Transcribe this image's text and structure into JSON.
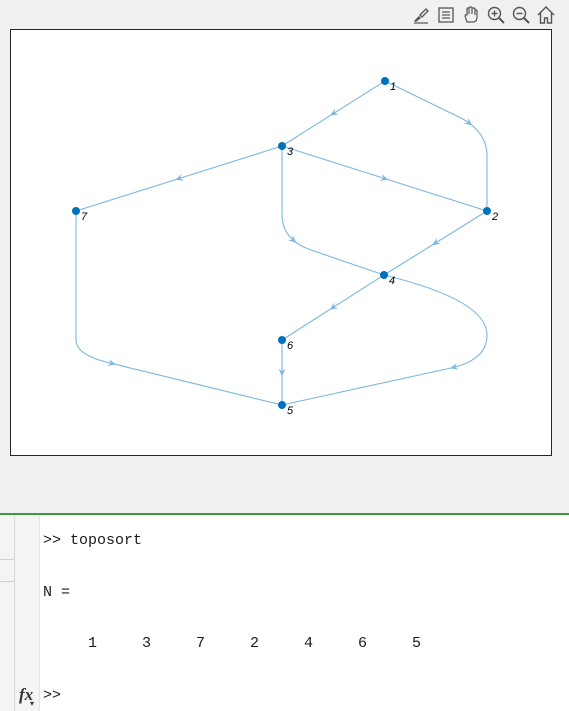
{
  "toolbar": {
    "buttons": [
      {
        "name": "brush-icon"
      },
      {
        "name": "data-tips-icon"
      },
      {
        "name": "pan-hand-icon"
      },
      {
        "name": "zoom-in-icon"
      },
      {
        "name": "zoom-out-icon"
      },
      {
        "name": "home-icon"
      }
    ]
  },
  "graph": {
    "nodes": [
      {
        "label": "1"
      },
      {
        "label": "3"
      },
      {
        "label": "7"
      },
      {
        "label": "2"
      },
      {
        "label": "4"
      },
      {
        "label": "6"
      },
      {
        "label": "5"
      }
    ],
    "edges": [
      {
        "from": "1",
        "to": "3"
      },
      {
        "from": "1",
        "to": "2"
      },
      {
        "from": "3",
        "to": "7"
      },
      {
        "from": "3",
        "to": "2"
      },
      {
        "from": "3",
        "to": "4"
      },
      {
        "from": "2",
        "to": "4"
      },
      {
        "from": "7",
        "to": "5"
      },
      {
        "from": "4",
        "to": "6"
      },
      {
        "from": "4",
        "to": "5"
      },
      {
        "from": "6",
        "to": "5"
      }
    ],
    "colors": {
      "node": "#0072bd",
      "edge": "#7cb6df"
    }
  },
  "command_window": {
    "command_prompt": ">>",
    "command": "toposort",
    "output_var": "N =",
    "values": [
      "1",
      "3",
      "7",
      "2",
      "4",
      "6",
      "5"
    ],
    "fx_label": "fx",
    "next_prompt": ">>"
  }
}
